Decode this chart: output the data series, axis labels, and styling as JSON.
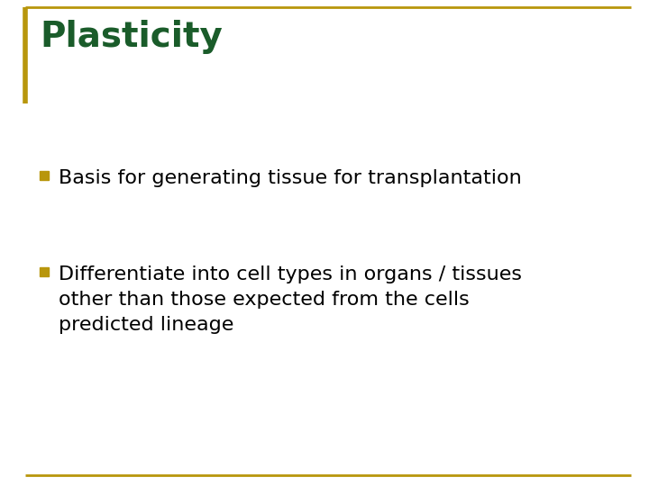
{
  "title": "Plasticity",
  "title_color": "#1a5c2a",
  "title_fontsize": 28,
  "background_color": "#ffffff",
  "border_color": "#b8960c",
  "border_linewidth": 2.0,
  "left_bar_color": "#b8960c",
  "left_bar_width": 4,
  "bullet_color": "#b8960c",
  "bullet_items": [
    "Basis for generating tissue for transplantation",
    "Differentiate into cell types in organs / tissues\nother than those expected from the cells\npredicted lineage"
  ],
  "bullet_fontsize": 16,
  "text_color": "#000000",
  "font_family": "DejaVu Sans",
  "title_font_weight": "bold",
  "body_font_weight": "normal"
}
